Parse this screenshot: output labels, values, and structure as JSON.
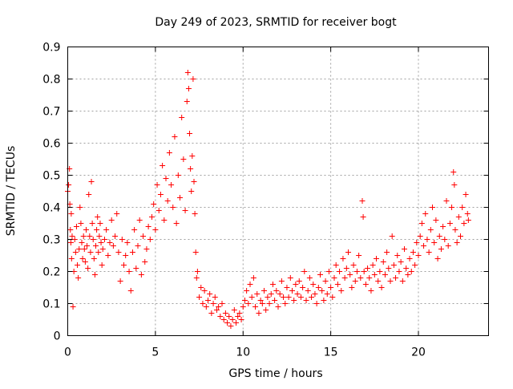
{
  "chart_data": {
    "type": "scatter",
    "title": "Day 249 of 2023, SRMTID for receiver bogt",
    "xlabel": "GPS time / hours",
    "ylabel": "SRMTID / TECUs",
    "xlim": [
      0,
      24
    ],
    "ylim": [
      0,
      0.9
    ],
    "xticks": [
      0,
      5,
      10,
      15,
      20
    ],
    "yticks": [
      0,
      0.1,
      0.2,
      0.3,
      0.4,
      0.5,
      0.6,
      0.7,
      0.8,
      0.9
    ],
    "xtick_labels": [
      "0",
      "5",
      "10",
      "15",
      "20"
    ],
    "ytick_labels": [
      "0",
      "0.1",
      "0.2",
      "0.3",
      "0.4",
      "0.5",
      "0.6",
      "0.7",
      "0.8",
      "0.9"
    ],
    "grid": true,
    "marker": "+",
    "color": "#ff0000",
    "series": [
      {
        "name": "SRMTID",
        "points": [
          [
            0.0,
            0.45
          ],
          [
            0.05,
            0.47
          ],
          [
            0.1,
            0.52
          ],
          [
            0.12,
            0.41
          ],
          [
            0.15,
            0.33
          ],
          [
            0.18,
            0.29
          ],
          [
            0.2,
            0.38
          ],
          [
            0.22,
            0.24
          ],
          [
            0.25,
            0.31
          ],
          [
            0.3,
            0.09
          ],
          [
            0.35,
            0.2
          ],
          [
            0.4,
            0.3
          ],
          [
            0.45,
            0.26
          ],
          [
            0.5,
            0.34
          ],
          [
            0.55,
            0.22
          ],
          [
            0.6,
            0.18
          ],
          [
            0.65,
            0.27
          ],
          [
            0.7,
            0.4
          ],
          [
            0.75,
            0.35
          ],
          [
            0.8,
            0.29
          ],
          [
            0.85,
            0.24
          ],
          [
            0.9,
            0.31
          ],
          [
            0.95,
            0.27
          ],
          [
            1.0,
            0.23
          ],
          [
            1.05,
            0.33
          ],
          [
            1.1,
            0.28
          ],
          [
            1.15,
            0.21
          ],
          [
            1.2,
            0.44
          ],
          [
            1.25,
            0.31
          ],
          [
            1.3,
            0.26
          ],
          [
            1.35,
            0.48
          ],
          [
            1.4,
            0.35
          ],
          [
            1.45,
            0.3
          ],
          [
            1.5,
            0.24
          ],
          [
            1.55,
            0.19
          ],
          [
            1.6,
            0.28
          ],
          [
            1.65,
            0.33
          ],
          [
            1.7,
            0.37
          ],
          [
            1.75,
            0.26
          ],
          [
            1.8,
            0.31
          ],
          [
            1.85,
            0.35
          ],
          [
            1.9,
            0.29
          ],
          [
            1.95,
            0.22
          ],
          [
            2.0,
            0.27
          ],
          [
            2.1,
            0.3
          ],
          [
            2.2,
            0.33
          ],
          [
            2.3,
            0.25
          ],
          [
            2.4,
            0.29
          ],
          [
            2.5,
            0.36
          ],
          [
            2.6,
            0.28
          ],
          [
            2.7,
            0.31
          ],
          [
            2.8,
            0.38
          ],
          [
            2.9,
            0.26
          ],
          [
            3.0,
            0.17
          ],
          [
            3.1,
            0.3
          ],
          [
            3.2,
            0.22
          ],
          [
            3.3,
            0.25
          ],
          [
            3.4,
            0.29
          ],
          [
            3.5,
            0.2
          ],
          [
            3.6,
            0.14
          ],
          [
            3.7,
            0.26
          ],
          [
            3.8,
            0.33
          ],
          [
            3.9,
            0.21
          ],
          [
            4.0,
            0.28
          ],
          [
            4.1,
            0.36
          ],
          [
            4.2,
            0.19
          ],
          [
            4.3,
            0.31
          ],
          [
            4.4,
            0.23
          ],
          [
            4.5,
            0.27
          ],
          [
            4.6,
            0.34
          ],
          [
            4.7,
            0.3
          ],
          [
            4.8,
            0.37
          ],
          [
            4.9,
            0.41
          ],
          [
            5.0,
            0.33
          ],
          [
            5.1,
            0.47
          ],
          [
            5.2,
            0.39
          ],
          [
            5.3,
            0.44
          ],
          [
            5.4,
            0.53
          ],
          [
            5.5,
            0.36
          ],
          [
            5.6,
            0.49
          ],
          [
            5.7,
            0.42
          ],
          [
            5.8,
            0.57
          ],
          [
            5.9,
            0.47
          ],
          [
            6.0,
            0.4
          ],
          [
            6.1,
            0.62
          ],
          [
            6.2,
            0.35
          ],
          [
            6.3,
            0.5
          ],
          [
            6.4,
            0.43
          ],
          [
            6.5,
            0.68
          ],
          [
            6.6,
            0.55
          ],
          [
            6.7,
            0.39
          ],
          [
            6.8,
            0.73
          ],
          [
            6.85,
            0.82
          ],
          [
            6.9,
            0.77
          ],
          [
            6.95,
            0.63
          ],
          [
            7.0,
            0.52
          ],
          [
            7.05,
            0.45
          ],
          [
            7.1,
            0.56
          ],
          [
            7.15,
            0.8
          ],
          [
            7.2,
            0.48
          ],
          [
            7.25,
            0.38
          ],
          [
            7.3,
            0.26
          ],
          [
            7.35,
            0.18
          ],
          [
            7.4,
            0.2
          ],
          [
            7.5,
            0.12
          ],
          [
            7.6,
            0.15
          ],
          [
            7.7,
            0.1
          ],
          [
            7.8,
            0.14
          ],
          [
            7.9,
            0.09
          ],
          [
            8.0,
            0.11
          ],
          [
            8.1,
            0.13
          ],
          [
            8.2,
            0.07
          ],
          [
            8.3,
            0.1
          ],
          [
            8.4,
            0.12
          ],
          [
            8.5,
            0.08
          ],
          [
            8.6,
            0.09
          ],
          [
            8.7,
            0.06
          ],
          [
            8.8,
            0.1
          ],
          [
            8.9,
            0.05
          ],
          [
            9.0,
            0.07
          ],
          [
            9.1,
            0.04
          ],
          [
            9.2,
            0.06
          ],
          [
            9.3,
            0.03
          ],
          [
            9.4,
            0.05
          ],
          [
            9.5,
            0.08
          ],
          [
            9.6,
            0.04
          ],
          [
            9.7,
            0.06
          ],
          [
            9.8,
            0.07
          ],
          [
            9.9,
            0.05
          ],
          [
            10.0,
            0.09
          ],
          [
            10.1,
            0.11
          ],
          [
            10.2,
            0.14
          ],
          [
            10.3,
            0.1
          ],
          [
            10.4,
            0.16
          ],
          [
            10.5,
            0.12
          ],
          [
            10.6,
            0.18
          ],
          [
            10.7,
            0.09
          ],
          [
            10.8,
            0.13
          ],
          [
            10.9,
            0.07
          ],
          [
            11.0,
            0.11
          ],
          [
            11.1,
            0.1
          ],
          [
            11.2,
            0.14
          ],
          [
            11.3,
            0.08
          ],
          [
            11.4,
            0.12
          ],
          [
            11.5,
            0.1
          ],
          [
            11.6,
            0.13
          ],
          [
            11.7,
            0.16
          ],
          [
            11.8,
            0.11
          ],
          [
            11.9,
            0.14
          ],
          [
            12.0,
            0.09
          ],
          [
            12.1,
            0.13
          ],
          [
            12.2,
            0.17
          ],
          [
            12.3,
            0.12
          ],
          [
            12.4,
            0.1
          ],
          [
            12.5,
            0.15
          ],
          [
            12.6,
            0.12
          ],
          [
            12.7,
            0.18
          ],
          [
            12.8,
            0.14
          ],
          [
            12.9,
            0.11
          ],
          [
            13.0,
            0.16
          ],
          [
            13.1,
            0.13
          ],
          [
            13.2,
            0.17
          ],
          [
            13.3,
            0.12
          ],
          [
            13.4,
            0.15
          ],
          [
            13.5,
            0.2
          ],
          [
            13.6,
            0.11
          ],
          [
            13.7,
            0.14
          ],
          [
            13.8,
            0.18
          ],
          [
            13.9,
            0.12
          ],
          [
            14.0,
            0.16
          ],
          [
            14.1,
            0.13
          ],
          [
            14.2,
            0.1
          ],
          [
            14.3,
            0.15
          ],
          [
            14.4,
            0.19
          ],
          [
            14.5,
            0.14
          ],
          [
            14.6,
            0.11
          ],
          [
            14.7,
            0.17
          ],
          [
            14.8,
            0.13
          ],
          [
            14.9,
            0.2
          ],
          [
            15.0,
            0.15
          ],
          [
            15.1,
            0.12
          ],
          [
            15.2,
            0.18
          ],
          [
            15.3,
            0.22
          ],
          [
            15.4,
            0.16
          ],
          [
            15.5,
            0.2
          ],
          [
            15.6,
            0.14
          ],
          [
            15.7,
            0.24
          ],
          [
            15.8,
            0.18
          ],
          [
            15.9,
            0.21
          ],
          [
            16.0,
            0.26
          ],
          [
            16.1,
            0.19
          ],
          [
            16.2,
            0.15
          ],
          [
            16.3,
            0.22
          ],
          [
            16.4,
            0.17
          ],
          [
            16.5,
            0.2
          ],
          [
            16.6,
            0.25
          ],
          [
            16.7,
            0.18
          ],
          [
            16.8,
            0.42
          ],
          [
            16.85,
            0.37
          ],
          [
            16.9,
            0.2
          ],
          [
            17.0,
            0.16
          ],
          [
            17.1,
            0.21
          ],
          [
            17.2,
            0.18
          ],
          [
            17.3,
            0.14
          ],
          [
            17.4,
            0.22
          ],
          [
            17.5,
            0.19
          ],
          [
            17.6,
            0.24
          ],
          [
            17.7,
            0.17
          ],
          [
            17.8,
            0.2
          ],
          [
            17.9,
            0.15
          ],
          [
            18.0,
            0.23
          ],
          [
            18.1,
            0.19
          ],
          [
            18.2,
            0.26
          ],
          [
            18.3,
            0.21
          ],
          [
            18.4,
            0.17
          ],
          [
            18.5,
            0.31
          ],
          [
            18.6,
            0.22
          ],
          [
            18.7,
            0.18
          ],
          [
            18.8,
            0.25
          ],
          [
            18.9,
            0.2
          ],
          [
            19.0,
            0.23
          ],
          [
            19.1,
            0.17
          ],
          [
            19.2,
            0.27
          ],
          [
            19.3,
            0.21
          ],
          [
            19.4,
            0.19
          ],
          [
            19.5,
            0.24
          ],
          [
            19.6,
            0.2
          ],
          [
            19.7,
            0.26
          ],
          [
            19.8,
            0.22
          ],
          [
            19.9,
            0.29
          ],
          [
            20.0,
            0.25
          ],
          [
            20.1,
            0.31
          ],
          [
            20.2,
            0.35
          ],
          [
            20.3,
            0.28
          ],
          [
            20.4,
            0.38
          ],
          [
            20.5,
            0.3
          ],
          [
            20.6,
            0.26
          ],
          [
            20.7,
            0.33
          ],
          [
            20.8,
            0.4
          ],
          [
            20.9,
            0.29
          ],
          [
            21.0,
            0.36
          ],
          [
            21.1,
            0.24
          ],
          [
            21.2,
            0.31
          ],
          [
            21.3,
            0.27
          ],
          [
            21.4,
            0.34
          ],
          [
            21.5,
            0.3
          ],
          [
            21.6,
            0.42
          ],
          [
            21.7,
            0.28
          ],
          [
            21.8,
            0.35
          ],
          [
            21.9,
            0.4
          ],
          [
            22.0,
            0.51
          ],
          [
            22.05,
            0.47
          ],
          [
            22.1,
            0.33
          ],
          [
            22.2,
            0.29
          ],
          [
            22.3,
            0.37
          ],
          [
            22.4,
            0.31
          ],
          [
            22.5,
            0.4
          ],
          [
            22.6,
            0.35
          ],
          [
            22.7,
            0.44
          ],
          [
            22.8,
            0.38
          ],
          [
            22.85,
            0.36
          ]
        ]
      }
    ]
  }
}
